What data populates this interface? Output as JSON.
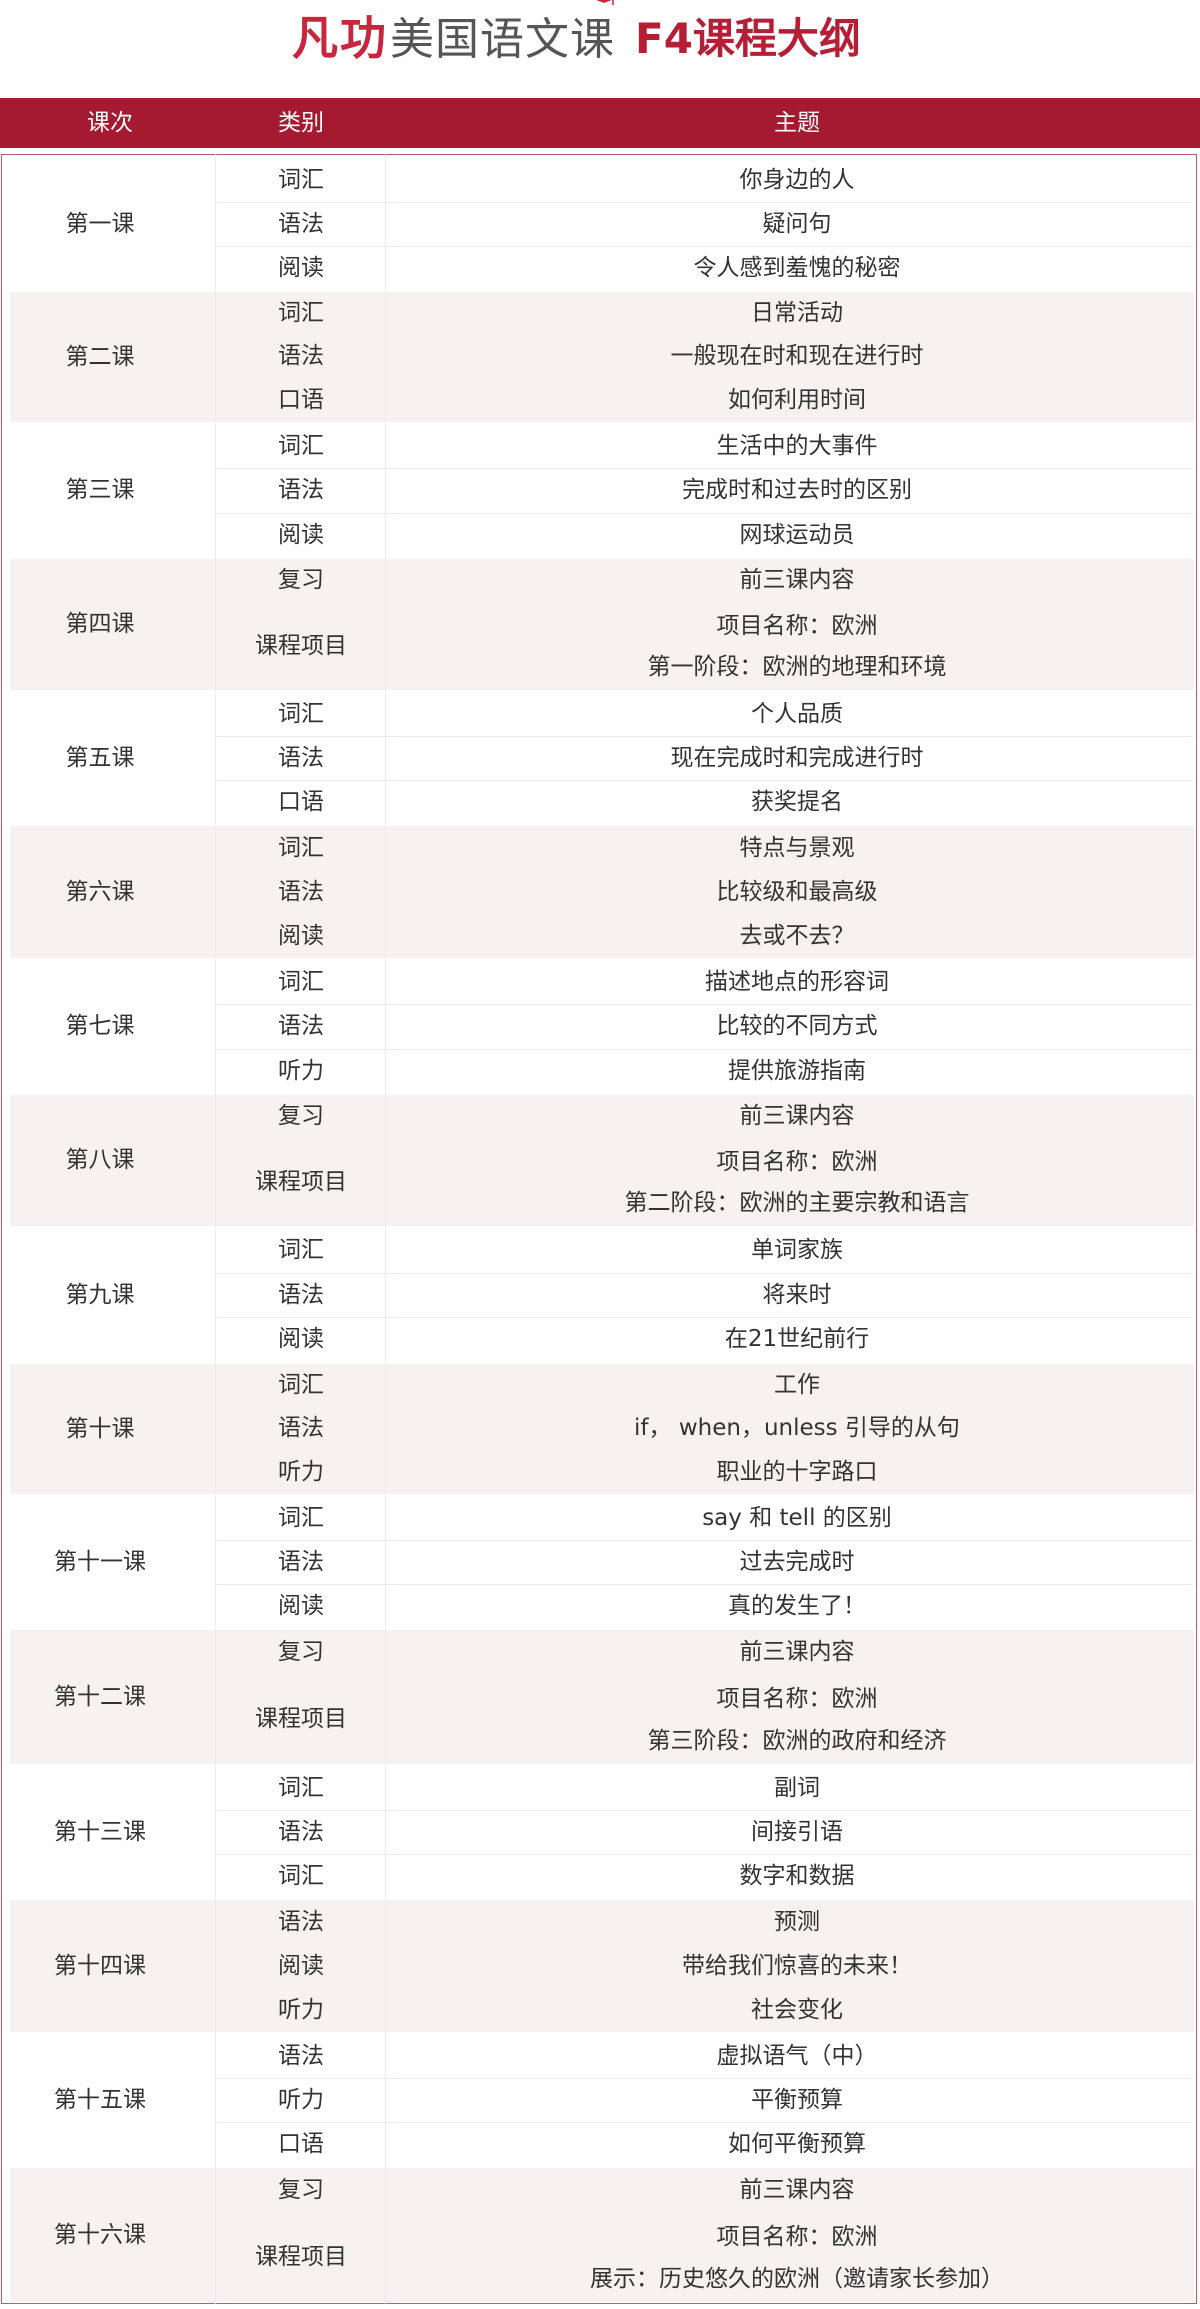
{
  "header": {
    "brand_mark": "凡功",
    "brand_name": "美国语文课",
    "title": "F4课程大纲"
  },
  "table_headers": {
    "lesson": "课次",
    "category": "类别",
    "topic": "主题"
  },
  "lessons": [
    {
      "name": "第一课",
      "rows": [
        {
          "category": "词汇",
          "topic": "你身边的人"
        },
        {
          "category": "语法",
          "topic": "疑问句"
        },
        {
          "category": "阅读",
          "topic": "令人感到羞愧的秘密"
        }
      ]
    },
    {
      "name": "第二课",
      "rows": [
        {
          "category": "词汇",
          "topic": "日常活动"
        },
        {
          "category": "语法",
          "topic": "一般现在时和现在进行时"
        },
        {
          "category": "口语",
          "topic": "如何利用时间"
        }
      ]
    },
    {
      "name": "第三课",
      "rows": [
        {
          "category": "词汇",
          "topic": "生活中的大事件"
        },
        {
          "category": "语法",
          "topic": "完成时和过去时的区别"
        },
        {
          "category": "阅读",
          "topic": "网球运动员"
        }
      ]
    },
    {
      "name": "第四课",
      "rows": [
        {
          "category": "复习",
          "topic": "前三课内容"
        },
        {
          "category": "课程项目",
          "topic": "项目名称：欧洲",
          "topic2": "第一阶段：欧洲的地理和环境"
        }
      ]
    },
    {
      "name": "第五课",
      "rows": [
        {
          "category": "词汇",
          "topic": "个人品质"
        },
        {
          "category": "语法",
          "topic": "现在完成时和完成进行时"
        },
        {
          "category": "口语",
          "topic": "获奖提名"
        }
      ]
    },
    {
      "name": "第六课",
      "rows": [
        {
          "category": "词汇",
          "topic": "特点与景观"
        },
        {
          "category": "语法",
          "topic": "比较级和最高级"
        },
        {
          "category": "阅读",
          "topic": "去或不去？"
        }
      ]
    },
    {
      "name": "第七课",
      "rows": [
        {
          "category": "词汇",
          "topic": "描述地点的形容词"
        },
        {
          "category": "语法",
          "topic": "比较的不同方式"
        },
        {
          "category": "听力",
          "topic": "提供旅游指南"
        }
      ]
    },
    {
      "name": "第八课",
      "rows": [
        {
          "category": "复习",
          "topic": "前三课内容"
        },
        {
          "category": "课程项目",
          "topic": "项目名称：欧洲",
          "topic2": "第二阶段：欧洲的主要宗教和语言"
        }
      ]
    },
    {
      "name": "第九课",
      "rows": [
        {
          "category": "词汇",
          "topic": "单词家族"
        },
        {
          "category": "语法",
          "topic": "将来时"
        },
        {
          "category": "阅读",
          "topic": "在21世纪前行"
        }
      ]
    },
    {
      "name": "第十课",
      "rows": [
        {
          "category": "词汇",
          "topic": "工作"
        },
        {
          "category": "语法",
          "topic": "if， when，unless 引导的从句"
        },
        {
          "category": "听力",
          "topic": "职业的十字路口"
        }
      ]
    },
    {
      "name": "第十一课",
      "rows": [
        {
          "category": "词汇",
          "topic": "say  和  tell 的区别"
        },
        {
          "category": "语法",
          "topic": "过去完成时"
        },
        {
          "category": "阅读",
          "topic": "真的发生了！"
        }
      ]
    },
    {
      "name": "第十二课",
      "rows": [
        {
          "category": "复习",
          "topic": "前三课内容"
        },
        {
          "category": "课程项目",
          "topic": "项目名称：欧洲",
          "topic2": "第三阶段：欧洲的政府和经济"
        }
      ]
    },
    {
      "name": "第十三课",
      "rows": [
        {
          "category": "词汇",
          "topic": "副词"
        },
        {
          "category": "语法",
          "topic": "间接引语"
        },
        {
          "category": "词汇",
          "topic": "数字和数据"
        }
      ]
    },
    {
      "name": "第十四课",
      "rows": [
        {
          "category": "语法",
          "topic": "预测"
        },
        {
          "category": "阅读",
          "topic": "带给我们惊喜的未来！"
        },
        {
          "category": "听力",
          "topic": "社会变化"
        }
      ]
    },
    {
      "name": "第十五课",
      "rows": [
        {
          "category": "语法",
          "topic": "虚拟语气（中）"
        },
        {
          "category": "听力",
          "topic": "平衡预算"
        },
        {
          "category": "口语",
          "topic": "如何平衡预算"
        }
      ]
    },
    {
      "name": "第十六课",
      "rows": [
        {
          "category": "复习",
          "topic": "前三课内容"
        },
        {
          "category": "课程项目",
          "topic": "项目名称：欧洲",
          "topic2": "展示：历史悠久的欧洲（邀请家长参加）"
        }
      ]
    }
  ],
  "colors": {
    "brand_red": "#a51a30",
    "row_shade": "#f7f1f2"
  }
}
